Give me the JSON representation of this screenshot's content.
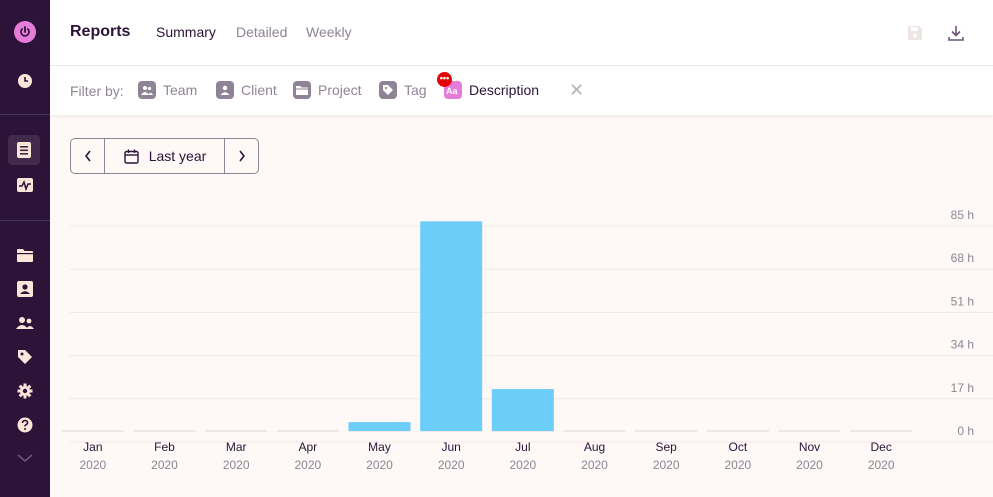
{
  "sidebar": {
    "items": [
      {
        "icon": "power-icon"
      },
      {
        "icon": "clock-icon"
      },
      {
        "icon": "reports-icon",
        "active": true
      },
      {
        "icon": "insights-icon"
      },
      {
        "icon": "folder-icon"
      },
      {
        "icon": "client-icon"
      },
      {
        "icon": "team-icon"
      },
      {
        "icon": "tag-icon"
      },
      {
        "icon": "gear-icon"
      },
      {
        "icon": "help-icon"
      },
      {
        "icon": "chevron-down-icon"
      }
    ]
  },
  "header": {
    "title": "Reports",
    "tabs": [
      {
        "label": "Summary",
        "active": true
      },
      {
        "label": "Detailed",
        "active": false
      },
      {
        "label": "Weekly",
        "active": false
      }
    ]
  },
  "filters": {
    "label": "Filter by:",
    "items": [
      {
        "label": "Team",
        "icon": "team-icon"
      },
      {
        "label": "Client",
        "icon": "client-icon"
      },
      {
        "label": "Project",
        "icon": "folder-icon"
      },
      {
        "label": "Tag",
        "icon": "tag-icon"
      },
      {
        "label": "Description",
        "icon": "description-icon",
        "badge": "•••"
      }
    ],
    "clear_label": "✕"
  },
  "date_range": {
    "label": "Last year"
  },
  "colors": {
    "sidebar": "#2c1338",
    "bar": "#6dcdf9",
    "accent": "#e57cd8"
  },
  "chart_data": {
    "type": "bar",
    "categories": [
      "Jan",
      "Feb",
      "Mar",
      "Apr",
      "May",
      "Jun",
      "Jul",
      "Aug",
      "Sep",
      "Oct",
      "Nov",
      "Dec"
    ],
    "year_labels": [
      "2020",
      "2020",
      "2020",
      "2020",
      "2020",
      "2020",
      "2020",
      "2020",
      "2020",
      "2020",
      "2020",
      "2020"
    ],
    "values": [
      0,
      0,
      0,
      0,
      3.5,
      82.5,
      16.5,
      0,
      0,
      0,
      0,
      0
    ],
    "yticks": [
      {
        "value": 0,
        "label": "0 h"
      },
      {
        "value": 17,
        "label": "17 h"
      },
      {
        "value": 34,
        "label": "34 h"
      },
      {
        "value": 51,
        "label": "51 h"
      },
      {
        "value": 68,
        "label": "68 h"
      },
      {
        "value": 85,
        "label": "85 h"
      }
    ],
    "ylim": [
      0,
      85
    ],
    "grid": true,
    "color": "#6dcdf9"
  }
}
